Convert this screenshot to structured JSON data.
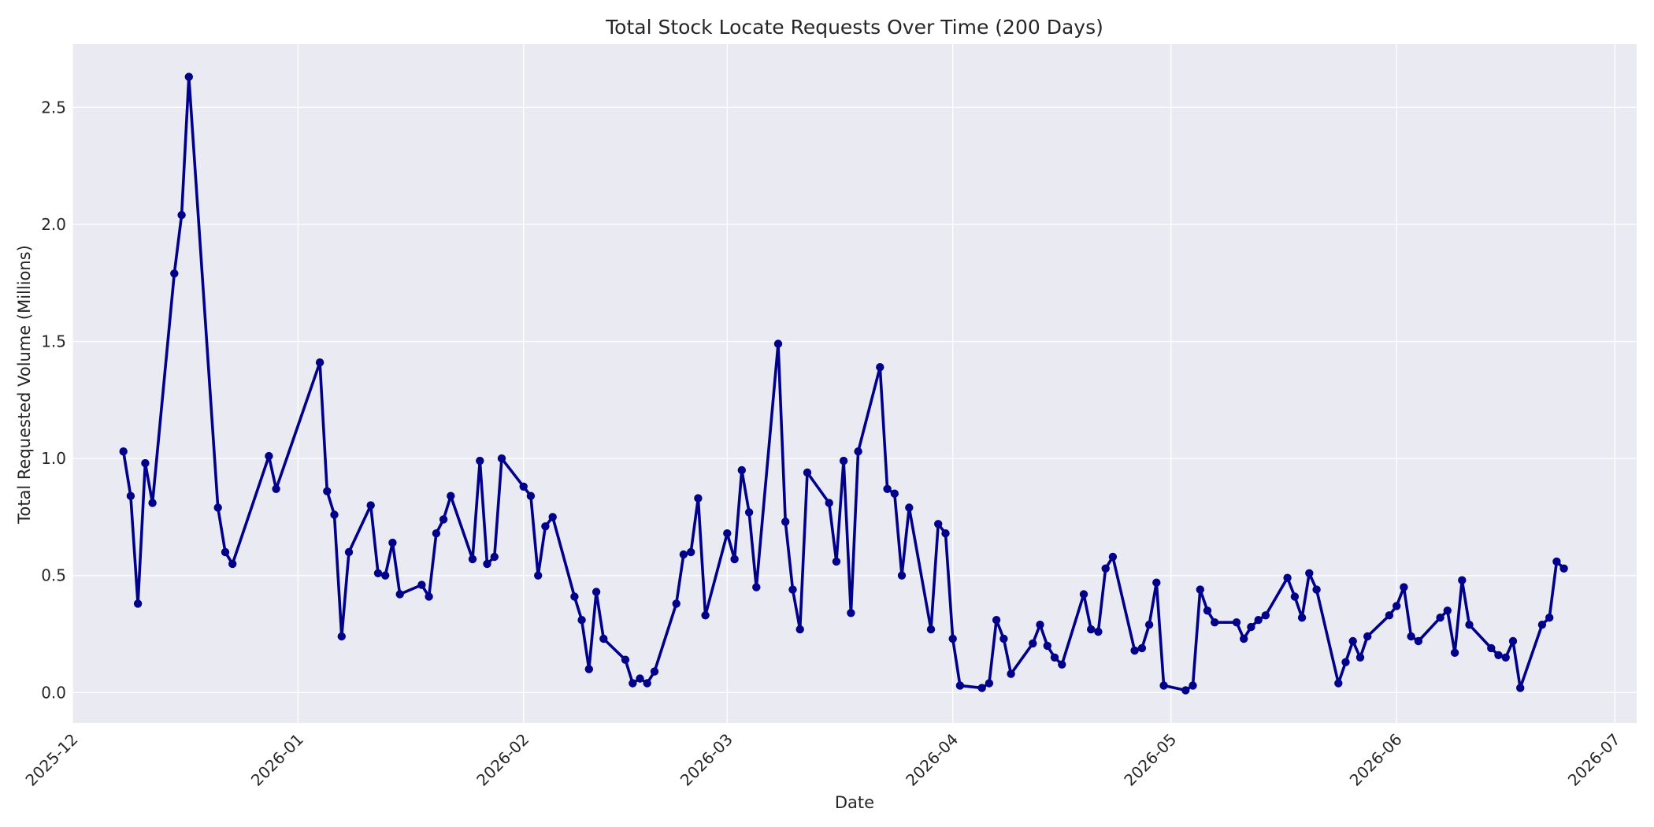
{
  "chart_data": {
    "type": "line",
    "title": "Total Stock Locate Requests Over Time (200 Days)",
    "xlabel": "Date",
    "ylabel": "Total Requested Volume (Millions)",
    "xlim": [
      "2025-12-01",
      "2026-07-04"
    ],
    "ylim": [
      -0.13,
      2.77
    ],
    "grid": true,
    "marker": "circle",
    "colors": {
      "line": "#00008b",
      "plot_background": "#eaeaf2",
      "grid": "#ffffff"
    },
    "x_ticks": [
      {
        "date": "2025-12-01",
        "label": "2025-12"
      },
      {
        "date": "2026-01-01",
        "label": "2026-01"
      },
      {
        "date": "2026-02-01",
        "label": "2026-02"
      },
      {
        "date": "2026-03-01",
        "label": "2026-03"
      },
      {
        "date": "2026-04-01",
        "label": "2026-04"
      },
      {
        "date": "2026-05-01",
        "label": "2026-05"
      },
      {
        "date": "2026-06-01",
        "label": "2026-06"
      },
      {
        "date": "2026-07-01",
        "label": "2026-07"
      }
    ],
    "y_ticks": [
      {
        "value": 0,
        "label": "0.0"
      },
      {
        "value": 0.5,
        "label": "0.5"
      },
      {
        "value": 1,
        "label": "1.0"
      },
      {
        "value": 1.5,
        "label": "1.5"
      },
      {
        "value": 2,
        "label": "2.0"
      },
      {
        "value": 2.5,
        "label": "2.5"
      }
    ],
    "x": [
      "2025-12-08",
      "2025-12-09",
      "2025-12-10",
      "2025-12-11",
      "2025-12-12",
      "2025-12-15",
      "2025-12-16",
      "2025-12-17",
      "2025-12-21",
      "2025-12-22",
      "2025-12-23",
      "2025-12-28",
      "2025-12-29",
      "2026-01-04",
      "2026-01-05",
      "2026-01-06",
      "2026-01-07",
      "2026-01-08",
      "2026-01-11",
      "2026-01-12",
      "2026-01-13",
      "2026-01-14",
      "2026-01-15",
      "2026-01-18",
      "2026-01-19",
      "2026-01-20",
      "2026-01-21",
      "2026-01-22",
      "2026-01-25",
      "2026-01-26",
      "2026-01-27",
      "2026-01-28",
      "2026-01-29",
      "2026-02-01",
      "2026-02-02",
      "2026-02-03",
      "2026-02-04",
      "2026-02-05",
      "2026-02-08",
      "2026-02-09",
      "2026-02-10",
      "2026-02-11",
      "2026-02-12",
      "2026-02-15",
      "2026-02-16",
      "2026-02-17",
      "2026-02-18",
      "2026-02-19",
      "2026-02-22",
      "2026-02-23",
      "2026-02-24",
      "2026-02-25",
      "2026-02-26",
      "2026-03-01",
      "2026-03-02",
      "2026-03-03",
      "2026-03-04",
      "2026-03-05",
      "2026-03-08",
      "2026-03-09",
      "2026-03-10",
      "2026-03-11",
      "2026-03-12",
      "2026-03-15",
      "2026-03-16",
      "2026-03-17",
      "2026-03-18",
      "2026-03-19",
      "2026-03-22",
      "2026-03-23",
      "2026-03-24",
      "2026-03-25",
      "2026-03-26",
      "2026-03-29",
      "2026-03-30",
      "2026-03-31",
      "2026-04-01",
      "2026-04-02",
      "2026-04-05",
      "2026-04-06",
      "2026-04-07",
      "2026-04-08",
      "2026-04-09",
      "2026-04-12",
      "2026-04-13",
      "2026-04-14",
      "2026-04-15",
      "2026-04-16",
      "2026-04-19",
      "2026-04-20",
      "2026-04-21",
      "2026-04-22",
      "2026-04-23",
      "2026-04-26",
      "2026-04-27",
      "2026-04-28",
      "2026-04-29",
      "2026-04-30",
      "2026-05-03",
      "2026-05-04",
      "2026-05-05",
      "2026-05-06",
      "2026-05-07",
      "2026-05-10",
      "2026-05-11",
      "2026-05-12",
      "2026-05-13",
      "2026-05-14",
      "2026-05-17",
      "2026-05-18",
      "2026-05-19",
      "2026-05-20",
      "2026-05-21",
      "2026-05-24",
      "2026-05-25",
      "2026-05-26",
      "2026-05-27",
      "2026-05-28",
      "2026-05-31",
      "2026-06-01",
      "2026-06-02",
      "2026-06-03",
      "2026-06-04",
      "2026-06-07",
      "2026-06-08",
      "2026-06-09",
      "2026-06-10",
      "2026-06-11",
      "2026-06-14",
      "2026-06-15",
      "2026-06-16",
      "2026-06-17",
      "2026-06-18",
      "2026-06-21",
      "2026-06-22",
      "2026-06-23",
      "2026-06-24"
    ],
    "values": [
      1.03,
      0.84,
      0.38,
      0.98,
      0.81,
      1.79,
      2.04,
      2.63,
      0.79,
      0.6,
      0.55,
      1.01,
      0.87,
      1.41,
      0.86,
      0.76,
      0.24,
      0.6,
      0.8,
      0.51,
      0.5,
      0.64,
      0.42,
      0.46,
      0.41,
      0.68,
      0.74,
      0.84,
      0.57,
      0.99,
      0.55,
      0.58,
      1.0,
      0.88,
      0.84,
      0.5,
      0.71,
      0.75,
      0.41,
      0.31,
      0.1,
      0.43,
      0.23,
      0.14,
      0.04,
      0.06,
      0.04,
      0.09,
      0.38,
      0.59,
      0.6,
      0.83,
      0.33,
      0.68,
      0.57,
      0.95,
      0.77,
      0.45,
      1.49,
      0.73,
      0.44,
      0.27,
      0.94,
      0.81,
      0.56,
      0.99,
      0.34,
      1.03,
      1.39,
      0.87,
      0.85,
      0.5,
      0.79,
      0.27,
      0.72,
      0.68,
      0.23,
      0.03,
      0.02,
      0.04,
      0.31,
      0.23,
      0.08,
      0.21,
      0.29,
      0.2,
      0.15,
      0.12,
      0.42,
      0.27,
      0.26,
      0.53,
      0.58,
      0.18,
      0.19,
      0.29,
      0.47,
      0.03,
      0.01,
      0.03,
      0.44,
      0.35,
      0.3,
      0.3,
      0.23,
      0.28,
      0.31,
      0.33,
      0.49,
      0.41,
      0.32,
      0.51,
      0.44,
      0.04,
      0.13,
      0.22,
      0.15,
      0.24,
      0.33,
      0.37,
      0.45,
      0.24,
      0.22,
      0.32,
      0.35,
      0.17,
      0.48,
      0.29,
      0.19,
      0.16,
      0.15,
      0.22,
      0.02,
      0.29,
      0.32,
      0.56,
      0.53
    ]
  }
}
